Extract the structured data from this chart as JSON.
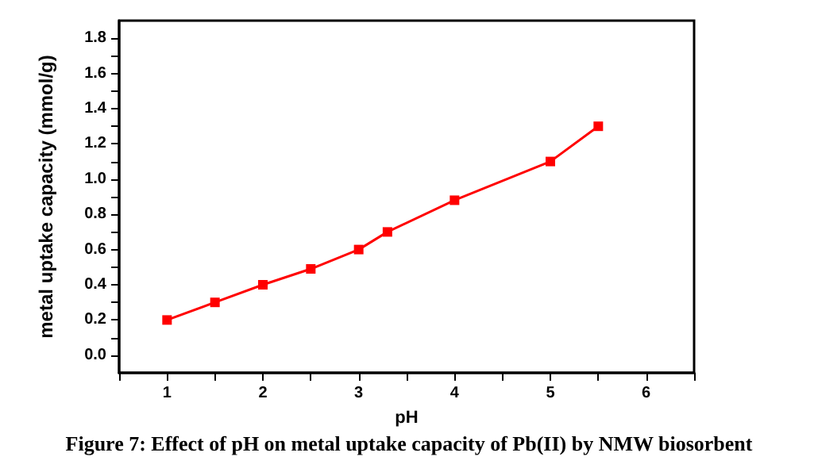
{
  "chart_data": {
    "type": "line",
    "title": "Figure 7: Effect of pH on metal uptake capacity of Pb(II) by NMW biosorbent",
    "xlabel": "pH",
    "ylabel": "metal uptake capacity (mmol/g)",
    "x": [
      1,
      1.5,
      2,
      2.5,
      3,
      3.3,
      4,
      5,
      5.5
    ],
    "series": [
      {
        "color": "#ff0000",
        "values": [
          0.2,
          0.3,
          0.4,
          0.49,
          0.6,
          0.7,
          0.88,
          1.1,
          1.3
        ]
      }
    ],
    "xlim": [
      0.5,
      6.5
    ],
    "xticks": [
      {
        "value": 0.5,
        "label": null
      },
      1,
      {
        "value": 1.5,
        "label": null
      },
      2,
      {
        "value": 2.5,
        "label": null
      },
      3,
      {
        "value": 3.5,
        "label": null
      },
      4,
      {
        "value": 4.5,
        "label": null
      },
      5,
      {
        "value": 5.5,
        "label": null
      },
      6,
      {
        "value": 6.5,
        "label": null
      }
    ],
    "ylim": [
      -0.1,
      1.9
    ],
    "yticks": [
      {
        "value": 0,
        "label": "0.0"
      },
      {
        "value": 0.1,
        "label": null
      },
      {
        "value": 0.2,
        "label": "0.2"
      },
      {
        "value": 0.3,
        "label": null
      },
      {
        "value": 0.4,
        "label": "0.4"
      },
      {
        "value": 0.5,
        "label": null
      },
      {
        "value": 0.6,
        "label": "0.6"
      },
      {
        "value": 0.7,
        "label": null
      },
      {
        "value": 0.8,
        "label": "0.8"
      },
      {
        "value": 0.9,
        "label": null
      },
      {
        "value": 1,
        "label": "1.0"
      },
      {
        "value": 1.1,
        "label": null
      },
      {
        "value": 1.2,
        "label": "1.2"
      },
      {
        "value": 1.3,
        "label": null
      },
      {
        "value": 1.4,
        "label": "1.4"
      },
      {
        "value": 1.5,
        "label": null
      },
      {
        "value": 1.6,
        "label": "1.6"
      },
      {
        "value": 1.7,
        "label": null
      },
      {
        "value": 1.8,
        "label": "1.8"
      }
    ],
    "grid": false,
    "marker": "square",
    "line_style": "solid"
  }
}
